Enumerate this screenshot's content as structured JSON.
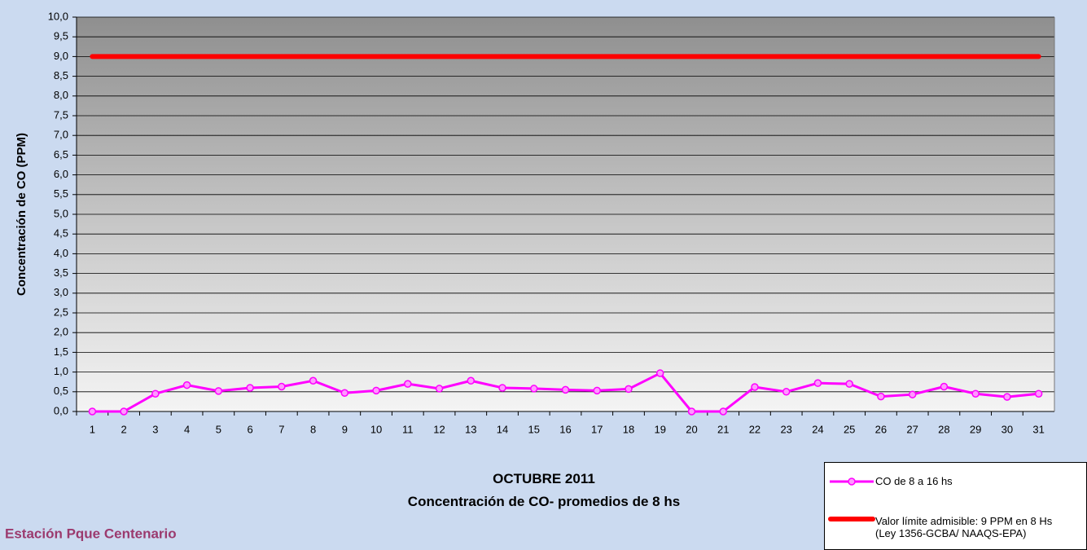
{
  "chart_data": {
    "type": "line",
    "title": "OCTUBRE 2011",
    "subtitle": "Concentración de CO- promedios de 8 hs",
    "y_label": "Concentración de CO (PPM)",
    "categories": [
      "1",
      "2",
      "3",
      "4",
      "5",
      "6",
      "7",
      "8",
      "9",
      "10",
      "11",
      "12",
      "13",
      "14",
      "15",
      "16",
      "17",
      "18",
      "19",
      "20",
      "21",
      "22",
      "23",
      "24",
      "25",
      "26",
      "27",
      "28",
      "29",
      "30",
      "31"
    ],
    "series": [
      {
        "name": "CO de 8 a 16 hs",
        "color": "#ff00ff",
        "values": [
          0,
          0,
          0.45,
          0.67,
          0.52,
          0.6,
          0.63,
          0.78,
          0.47,
          0.53,
          0.7,
          0.58,
          0.78,
          0.6,
          0.58,
          0.55,
          0.53,
          0.57,
          0.97,
          0,
          0,
          0.62,
          0.5,
          0.72,
          0.7,
          0.38,
          0.43,
          0.63,
          0.45,
          0.37,
          0.45
        ]
      },
      {
        "name": "Valor límite admisible: 9 PPM en 8 Hs (Ley 1356-GCBA/ NAAQS-EPA)",
        "color": "#ff0000",
        "values": [
          9,
          9,
          9,
          9,
          9,
          9,
          9,
          9,
          9,
          9,
          9,
          9,
          9,
          9,
          9,
          9,
          9,
          9,
          9,
          9,
          9,
          9,
          9,
          9,
          9,
          9,
          9,
          9,
          9,
          9,
          9
        ]
      }
    ],
    "ylim": [
      0,
      10
    ],
    "yticks": [
      {
        "value": 0,
        "label": "0,0"
      },
      {
        "value": 0.5,
        "label": "0,5"
      },
      {
        "value": 1,
        "label": "1,0"
      },
      {
        "value": 1.5,
        "label": "1,5"
      },
      {
        "value": 2,
        "label": "2,0"
      },
      {
        "value": 2.5,
        "label": "2,5"
      },
      {
        "value": 3,
        "label": "3,0"
      },
      {
        "value": 3.5,
        "label": "3,5"
      },
      {
        "value": 4,
        "label": "4,0"
      },
      {
        "value": 4.5,
        "label": "4,5"
      },
      {
        "value": 5,
        "label": "5,0"
      },
      {
        "value": 5.5,
        "label": "5,5"
      },
      {
        "value": 6,
        "label": "6,0"
      },
      {
        "value": 6.5,
        "label": "6,5"
      },
      {
        "value": 7,
        "label": "7,0"
      },
      {
        "value": 7.5,
        "label": "7,5"
      },
      {
        "value": 8,
        "label": "8,0"
      },
      {
        "value": 8.5,
        "label": "8,5"
      },
      {
        "value": 9,
        "label": "9,0"
      },
      {
        "value": 9.5,
        "label": "9,5"
      },
      {
        "value": 10,
        "label": "10,0"
      }
    ],
    "grid": true
  },
  "footer": "Estación Pque Centenario"
}
